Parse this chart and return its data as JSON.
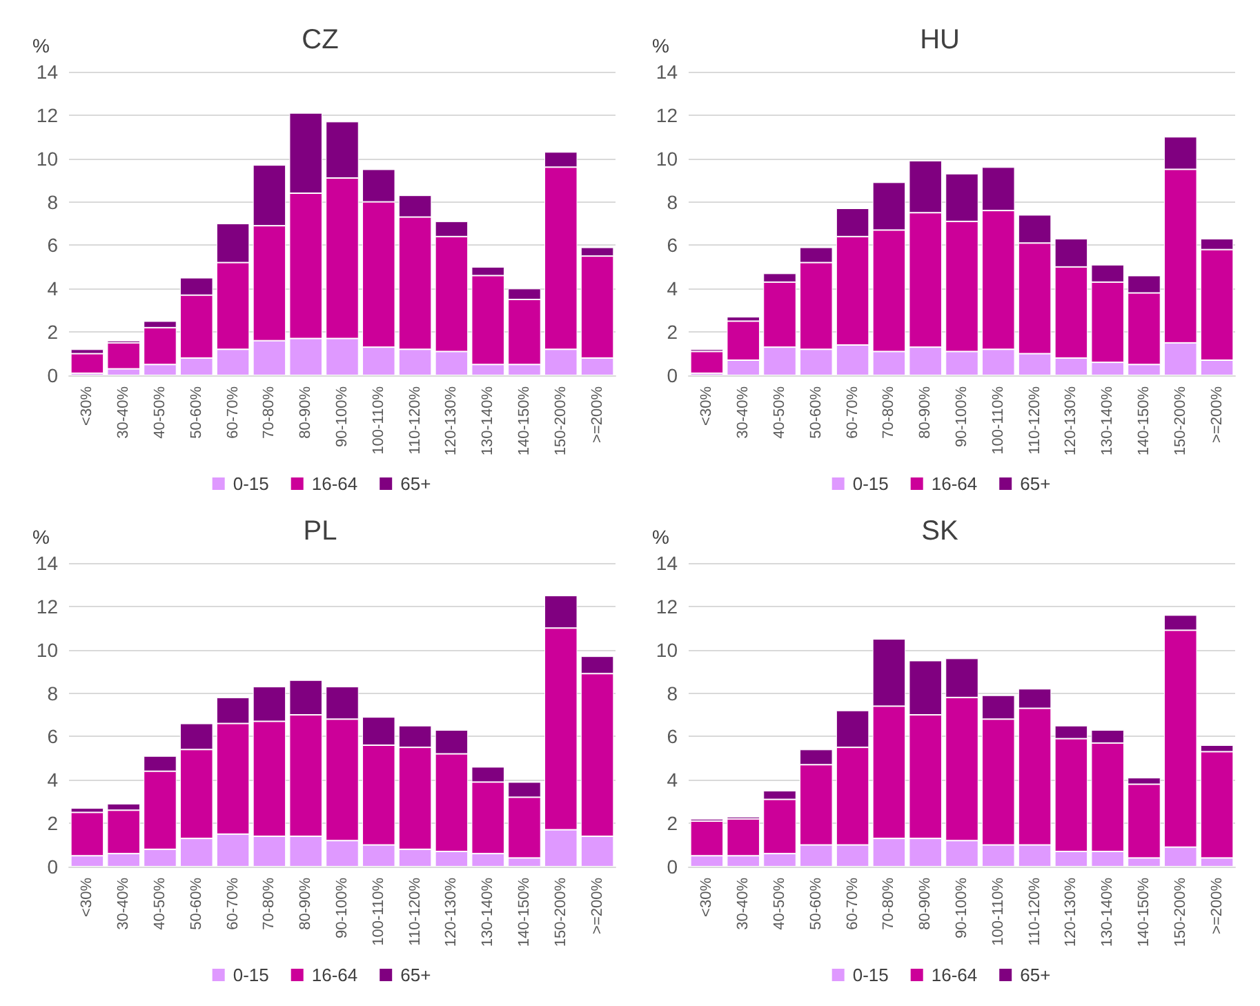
{
  "chart_data": [
    {
      "type": "bar",
      "title": "CZ",
      "ylabel": "%",
      "categories": [
        "<30%",
        "30-40%",
        "40-50%",
        "50-60%",
        "60-70%",
        "70-80%",
        "80-90%",
        "90-100%",
        "100-110%",
        "110-120%",
        "120-130%",
        "130-140%",
        "140-150%",
        "150-200%",
        ">=200%"
      ],
      "stacked": true,
      "ylim": [
        0,
        14
      ],
      "yticks": [
        0,
        2,
        4,
        6,
        8,
        10,
        12,
        14
      ],
      "grid": "y",
      "legend": "bottom",
      "series": [
        {
          "name": "0-15",
          "color": "#df99ff",
          "values": [
            0.1,
            0.3,
            0.5,
            0.8,
            1.2,
            1.6,
            1.7,
            1.7,
            1.3,
            1.2,
            1.1,
            0.5,
            0.5,
            1.2,
            0.8
          ]
        },
        {
          "name": "16-64",
          "color": "#cc0099",
          "values": [
            0.9,
            1.2,
            1.7,
            2.9,
            4.0,
            5.3,
            6.7,
            7.4,
            6.7,
            6.1,
            5.3,
            4.1,
            3.0,
            8.4,
            4.7
          ]
        },
        {
          "name": "65+",
          "color": "#800080",
          "values": [
            0.2,
            0.1,
            0.3,
            0.8,
            1.8,
            2.8,
            3.7,
            2.6,
            1.5,
            1.0,
            0.7,
            0.4,
            0.5,
            0.7,
            0.4
          ]
        }
      ]
    },
    {
      "type": "bar",
      "title": "HU",
      "ylabel": "%",
      "categories": [
        "<30%",
        "30-40%",
        "40-50%",
        "50-60%",
        "60-70%",
        "70-80%",
        "80-90%",
        "90-100%",
        "100-110%",
        "110-120%",
        "120-130%",
        "130-140%",
        "140-150%",
        "150-200%",
        ">=200%"
      ],
      "stacked": true,
      "ylim": [
        0,
        14
      ],
      "yticks": [
        0,
        2,
        4,
        6,
        8,
        10,
        12,
        14
      ],
      "grid": "y",
      "legend": "bottom",
      "series": [
        {
          "name": "0-15",
          "color": "#df99ff",
          "values": [
            0.1,
            0.7,
            1.3,
            1.2,
            1.4,
            1.1,
            1.3,
            1.1,
            1.2,
            1.0,
            0.8,
            0.6,
            0.5,
            1.5,
            0.7
          ]
        },
        {
          "name": "16-64",
          "color": "#cc0099",
          "values": [
            1.0,
            1.8,
            3.0,
            4.0,
            5.0,
            5.6,
            6.2,
            6.0,
            6.4,
            5.1,
            4.2,
            3.7,
            3.3,
            8.0,
            5.1
          ]
        },
        {
          "name": "65+",
          "color": "#800080",
          "values": [
            0.1,
            0.2,
            0.4,
            0.7,
            1.3,
            2.2,
            2.4,
            2.2,
            2.0,
            1.3,
            1.3,
            0.8,
            0.8,
            1.5,
            0.5
          ]
        }
      ]
    },
    {
      "type": "bar",
      "title": "PL",
      "ylabel": "%",
      "categories": [
        "<30%",
        "30-40%",
        "40-50%",
        "50-60%",
        "60-70%",
        "70-80%",
        "80-90%",
        "90-100%",
        "100-110%",
        "110-120%",
        "120-130%",
        "130-140%",
        "140-150%",
        "150-200%",
        ">=200%"
      ],
      "stacked": true,
      "ylim": [
        0,
        14
      ],
      "yticks": [
        0,
        2,
        4,
        6,
        8,
        10,
        12,
        14
      ],
      "grid": "y",
      "legend": "bottom",
      "series": [
        {
          "name": "0-15",
          "color": "#df99ff",
          "values": [
            0.5,
            0.6,
            0.8,
            1.3,
            1.5,
            1.4,
            1.4,
            1.2,
            1.0,
            0.8,
            0.7,
            0.6,
            0.4,
            1.7,
            1.4
          ]
        },
        {
          "name": "16-64",
          "color": "#cc0099",
          "values": [
            2.0,
            2.0,
            3.6,
            4.1,
            5.1,
            5.3,
            5.6,
            5.6,
            4.6,
            4.7,
            4.5,
            3.3,
            2.8,
            9.3,
            7.5
          ]
        },
        {
          "name": "65+",
          "color": "#800080",
          "values": [
            0.2,
            0.3,
            0.7,
            1.2,
            1.2,
            1.6,
            1.6,
            1.5,
            1.3,
            1.0,
            1.1,
            0.7,
            0.7,
            1.5,
            0.8
          ]
        }
      ]
    },
    {
      "type": "bar",
      "title": "SK",
      "ylabel": "%",
      "categories": [
        "<30%",
        "30-40%",
        "40-50%",
        "50-60%",
        "60-70%",
        "70-80%",
        "80-90%",
        "90-100%",
        "100-110%",
        "110-120%",
        "120-130%",
        "130-140%",
        "140-150%",
        "150-200%",
        ">=200%"
      ],
      "stacked": true,
      "ylim": [
        0,
        14
      ],
      "yticks": [
        0,
        2,
        4,
        6,
        8,
        10,
        12,
        14
      ],
      "grid": "y",
      "legend": "bottom",
      "series": [
        {
          "name": "0-15",
          "color": "#df99ff",
          "values": [
            0.5,
            0.5,
            0.6,
            1.0,
            1.0,
            1.3,
            1.3,
            1.2,
            1.0,
            1.0,
            0.7,
            0.7,
            0.4,
            0.9,
            0.4
          ]
        },
        {
          "name": "16-64",
          "color": "#cc0099",
          "values": [
            1.6,
            1.7,
            2.5,
            3.7,
            4.5,
            6.1,
            5.7,
            6.6,
            5.8,
            6.3,
            5.2,
            5.0,
            3.4,
            10.0,
            4.9
          ]
        },
        {
          "name": "65+",
          "color": "#800080",
          "values": [
            0.1,
            0.1,
            0.4,
            0.7,
            1.7,
            3.1,
            2.5,
            1.8,
            1.1,
            0.9,
            0.6,
            0.6,
            0.3,
            0.7,
            0.3
          ]
        }
      ]
    }
  ]
}
